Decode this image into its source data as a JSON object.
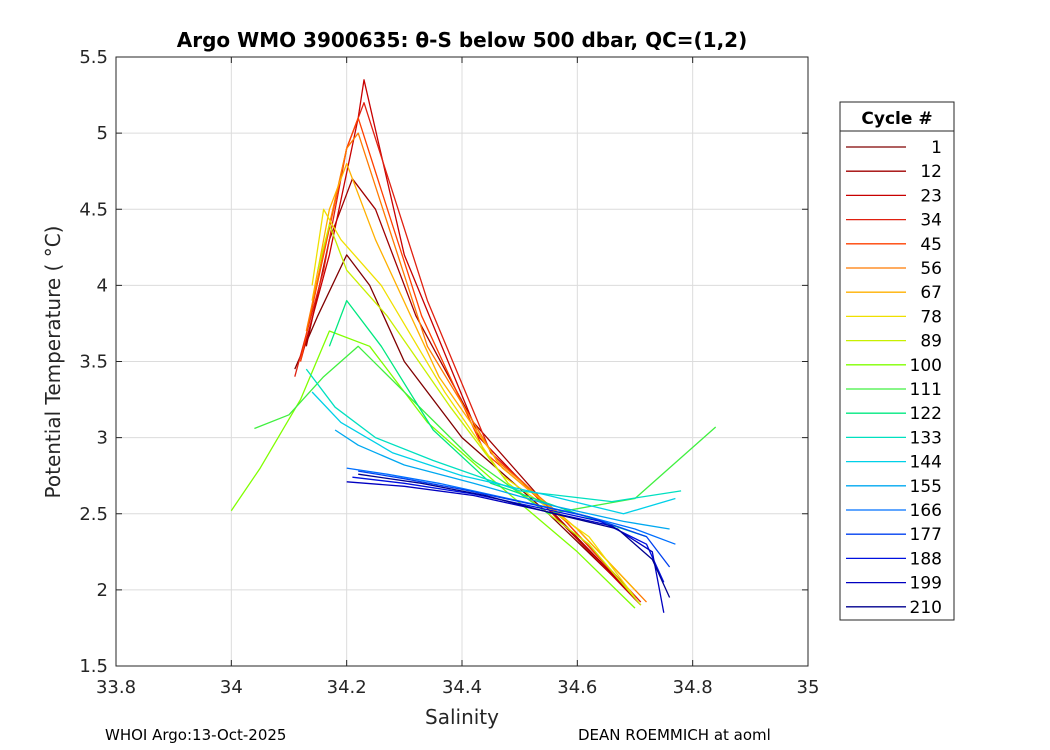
{
  "chart_data": {
    "type": "line",
    "title": "Argo WMO 3900635: θ-S below 500 dbar,  QC=(1,2)",
    "xlabel": "Salinity",
    "ylabel": "Potential Temperature ( °C)",
    "xlim": [
      33.8,
      35
    ],
    "ylim": [
      1.5,
      5.5
    ],
    "xticks": [
      "33.8",
      "34",
      "34.2",
      "34.4",
      "34.6",
      "34.8",
      "35"
    ],
    "yticks": [
      "1.5",
      "2",
      "2.5",
      "3",
      "3.5",
      "4",
      "4.5",
      "5",
      "5.5"
    ],
    "grid": true,
    "legend": {
      "title": "Cycle #",
      "placement": "outside-right",
      "entries": [
        {
          "label": "1",
          "color": "#800000"
        },
        {
          "label": "12",
          "color": "#a00000"
        },
        {
          "label": "23",
          "color": "#c80000"
        },
        {
          "label": "34",
          "color": "#e02010"
        },
        {
          "label": "45",
          "color": "#ff4000"
        },
        {
          "label": "56",
          "color": "#ff7a00"
        },
        {
          "label": "67",
          "color": "#ffb000"
        },
        {
          "label": "78",
          "color": "#f0e000"
        },
        {
          "label": "89",
          "color": "#c8f000"
        },
        {
          "label": "100",
          "color": "#80ff00"
        },
        {
          "label": "111",
          "color": "#40f040"
        },
        {
          "label": "122",
          "color": "#00e880"
        },
        {
          "label": "133",
          "color": "#00e0c0"
        },
        {
          "label": "144",
          "color": "#00d0e8"
        },
        {
          "label": "155",
          "color": "#00a8f0"
        },
        {
          "label": "166",
          "color": "#0070ff"
        },
        {
          "label": "177",
          "color": "#0040f0"
        },
        {
          "label": "188",
          "color": "#0010e0"
        },
        {
          "label": "199",
          "color": "#0000c0"
        },
        {
          "label": "210",
          "color": "#00008f"
        }
      ]
    },
    "series": [
      {
        "color": "#800000",
        "x": [
          34.11,
          34.15,
          34.2,
          34.24,
          34.3,
          34.4,
          34.55,
          34.7
        ],
        "y": [
          3.45,
          3.8,
          4.2,
          4.0,
          3.5,
          3.0,
          2.5,
          1.95
        ]
      },
      {
        "color": "#a00000",
        "x": [
          34.13,
          34.17,
          34.21,
          34.25,
          34.32,
          34.42,
          34.56,
          34.7
        ],
        "y": [
          3.6,
          4.3,
          4.7,
          4.5,
          3.8,
          3.1,
          2.5,
          1.95
        ]
      },
      {
        "color": "#c80000",
        "x": [
          34.12,
          34.17,
          34.22,
          34.23,
          34.3,
          34.43,
          34.57,
          34.71
        ],
        "y": [
          3.5,
          4.2,
          5.1,
          5.35,
          4.2,
          3.0,
          2.45,
          1.9
        ]
      },
      {
        "color": "#e02010",
        "x": [
          34.11,
          34.16,
          34.2,
          34.23,
          34.34,
          34.45,
          34.58,
          34.71
        ],
        "y": [
          3.4,
          4.1,
          4.9,
          5.2,
          3.9,
          2.9,
          2.45,
          1.92
        ]
      },
      {
        "color": "#ff4000",
        "x": [
          34.12,
          34.16,
          34.2,
          34.22,
          34.33,
          34.44,
          34.58,
          34.7
        ],
        "y": [
          3.5,
          4.2,
          4.9,
          5.1,
          3.8,
          2.9,
          2.45,
          1.95
        ]
      },
      {
        "color": "#ff7a00",
        "x": [
          34.13,
          34.17,
          34.2,
          34.22,
          34.34,
          34.46,
          34.6,
          34.72
        ],
        "y": [
          3.7,
          4.4,
          4.9,
          5.0,
          3.6,
          2.85,
          2.4,
          1.92
        ]
      },
      {
        "color": "#ffb000",
        "x": [
          34.14,
          34.17,
          34.2,
          34.25,
          34.36,
          34.47,
          34.6,
          34.7
        ],
        "y": [
          3.9,
          4.5,
          4.8,
          4.3,
          3.4,
          2.8,
          2.4,
          2.0
        ]
      },
      {
        "color": "#f0e000",
        "x": [
          34.14,
          34.16,
          34.19,
          34.26,
          34.37,
          34.47,
          34.62,
          34.7
        ],
        "y": [
          4.0,
          4.5,
          4.3,
          4.0,
          3.3,
          2.75,
          2.35,
          1.95
        ]
      },
      {
        "color": "#c8f000",
        "x": [
          34.15,
          34.17,
          34.2,
          34.27,
          34.38,
          34.48,
          34.62,
          34.71
        ],
        "y": [
          4.1,
          4.4,
          4.1,
          3.8,
          3.2,
          2.7,
          2.3,
          1.9
        ]
      },
      {
        "color": "#80ff00",
        "x": [
          34.0,
          34.05,
          34.12,
          34.17,
          34.24,
          34.34,
          34.46,
          34.6,
          34.7
        ],
        "y": [
          2.52,
          2.8,
          3.25,
          3.7,
          3.6,
          3.1,
          2.7,
          2.25,
          1.88
        ]
      },
      {
        "color": "#40f040",
        "x": [
          34.04,
          34.1,
          34.16,
          34.22,
          34.3,
          34.42,
          34.55,
          34.7,
          34.84
        ],
        "y": [
          3.06,
          3.15,
          3.4,
          3.6,
          3.3,
          2.85,
          2.5,
          2.6,
          3.07
        ]
      },
      {
        "color": "#00e880",
        "x": [
          34.17,
          34.2,
          34.26,
          34.35,
          34.45,
          34.6,
          34.72
        ],
        "y": [
          3.6,
          3.9,
          3.6,
          3.05,
          2.7,
          2.5,
          2.35
        ]
      },
      {
        "color": "#00e0c0",
        "x": [
          34.13,
          34.18,
          34.25,
          34.35,
          34.5,
          34.66,
          34.78
        ],
        "y": [
          3.45,
          3.2,
          3.0,
          2.85,
          2.65,
          2.58,
          2.65
        ]
      },
      {
        "color": "#00d0e8",
        "x": [
          34.14,
          34.19,
          34.28,
          34.4,
          34.55,
          34.68,
          34.77
        ],
        "y": [
          3.3,
          3.1,
          2.9,
          2.75,
          2.62,
          2.5,
          2.6
        ]
      },
      {
        "color": "#00a8f0",
        "x": [
          34.18,
          34.22,
          34.3,
          34.42,
          34.56,
          34.68,
          34.76
        ],
        "y": [
          3.05,
          2.95,
          2.82,
          2.7,
          2.55,
          2.45,
          2.4
        ]
      },
      {
        "color": "#0070ff",
        "x": [
          34.2,
          34.27,
          34.36,
          34.48,
          34.6,
          34.7,
          34.77
        ],
        "y": [
          2.8,
          2.76,
          2.7,
          2.6,
          2.5,
          2.4,
          2.3
        ]
      },
      {
        "color": "#0040f0",
        "x": [
          34.22,
          34.3,
          34.4,
          34.5,
          34.62,
          34.72,
          34.76
        ],
        "y": [
          2.78,
          2.73,
          2.66,
          2.58,
          2.48,
          2.35,
          2.15
        ]
      },
      {
        "color": "#0010e0",
        "x": [
          34.21,
          34.3,
          34.42,
          34.52,
          34.64,
          34.72,
          34.75
        ],
        "y": [
          2.74,
          2.7,
          2.63,
          2.55,
          2.45,
          2.3,
          2.05
        ]
      },
      {
        "color": "#0000c0",
        "x": [
          34.2,
          34.3,
          34.42,
          34.54,
          34.66,
          34.73,
          34.75
        ],
        "y": [
          2.71,
          2.68,
          2.62,
          2.52,
          2.42,
          2.25,
          1.85
        ]
      },
      {
        "color": "#00008f",
        "x": [
          34.22,
          34.33,
          34.44,
          34.56,
          34.67,
          34.73,
          34.76
        ],
        "y": [
          2.76,
          2.7,
          2.62,
          2.5,
          2.4,
          2.2,
          1.95
        ]
      }
    ]
  },
  "footer": {
    "left": "WHOI Argo:13-Oct-2025",
    "right": "DEAN ROEMMICH at aoml"
  }
}
